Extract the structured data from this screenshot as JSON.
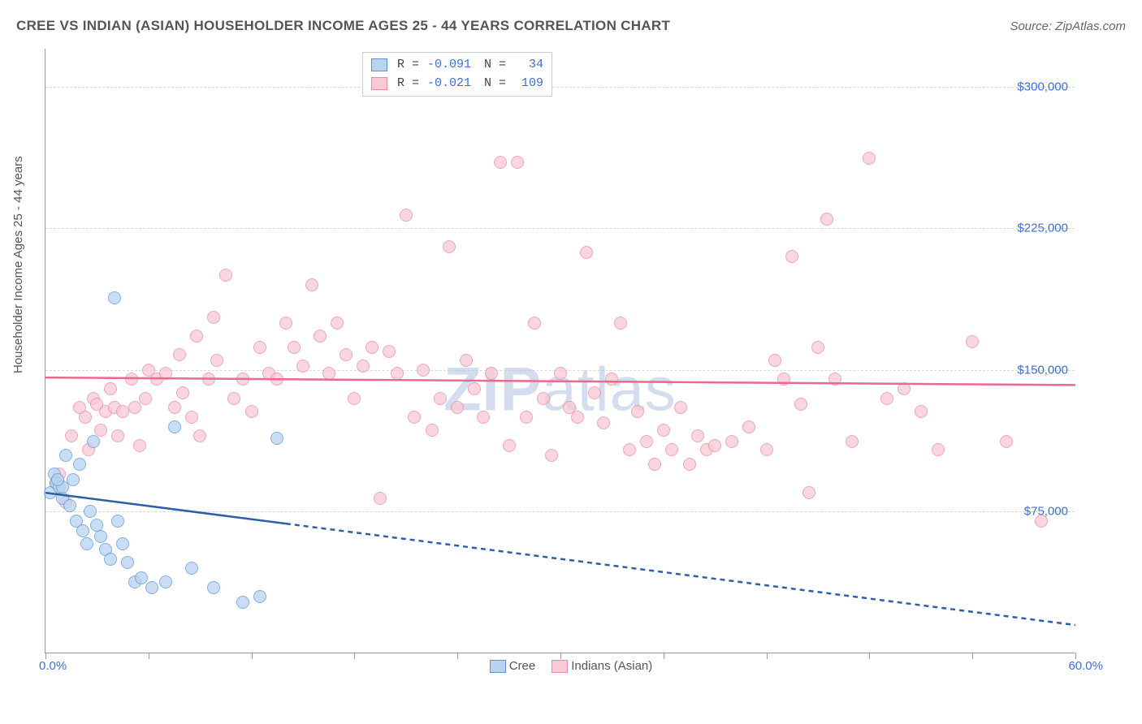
{
  "title": "CREE VS INDIAN (ASIAN) HOUSEHOLDER INCOME AGES 25 - 44 YEARS CORRELATION CHART",
  "source": "Source: ZipAtlas.com",
  "y_axis_label": "Householder Income Ages 25 - 44 years",
  "watermark_bold": "ZIP",
  "watermark_light": "atlas",
  "x_range": {
    "min_label": "0.0%",
    "max_label": "60.0%",
    "min": 0,
    "max": 60
  },
  "y_range": {
    "min": 0,
    "max": 320000
  },
  "y_ticks": [
    {
      "value": 75000,
      "label": "$75,000"
    },
    {
      "value": 150000,
      "label": "$150,000"
    },
    {
      "value": 225000,
      "label": "$225,000"
    },
    {
      "value": 300000,
      "label": "$300,000"
    }
  ],
  "x_tick_positions": [
    0,
    6,
    12,
    18,
    24,
    30,
    36,
    42,
    48,
    54,
    60
  ],
  "colors": {
    "cree_fill": "#b8d4f1",
    "cree_stroke": "#5a93d6",
    "cree_line": "#2d5fa8",
    "indian_fill": "#f9c9d4",
    "indian_stroke": "#e98aa5",
    "indian_line": "#e96a8b",
    "tick_label": "#3b6fd4",
    "grid": "#d8d8d8",
    "background": "#ffffff"
  },
  "marker_radius": 8,
  "legend_top": [
    {
      "swatch_fill": "#b8d4f1",
      "swatch_stroke": "#5a93d6",
      "r_label": "R =",
      "r_value": "-0.091",
      "n_label": "N =",
      "n_value": " 34"
    },
    {
      "swatch_fill": "#f9c9d4",
      "swatch_stroke": "#e98aa5",
      "r_label": "R =",
      "r_value": "-0.021",
      "n_label": "N =",
      "n_value": "109"
    }
  ],
  "legend_bottom": [
    {
      "swatch_fill": "#b8d4f1",
      "swatch_stroke": "#5a93d6",
      "label": "Cree"
    },
    {
      "swatch_fill": "#f9c9d4",
      "swatch_stroke": "#e98aa5",
      "label": "Indians (Asian)"
    }
  ],
  "series": {
    "cree": {
      "color_fill": "#b8d4f1",
      "color_stroke": "#5a93d6",
      "points": [
        [
          0.3,
          85000
        ],
        [
          0.5,
          95000
        ],
        [
          0.6,
          90000
        ],
        [
          0.8,
          88000
        ],
        [
          1.0,
          82000
        ],
        [
          1.2,
          105000
        ],
        [
          1.4,
          78000
        ],
        [
          1.6,
          92000
        ],
        [
          1.8,
          70000
        ],
        [
          2.0,
          100000
        ],
        [
          2.2,
          65000
        ],
        [
          2.4,
          58000
        ],
        [
          2.6,
          75000
        ],
        [
          2.8,
          112000
        ],
        [
          3.0,
          68000
        ],
        [
          3.2,
          62000
        ],
        [
          3.5,
          55000
        ],
        [
          3.8,
          50000
        ],
        [
          4.0,
          188000
        ],
        [
          4.2,
          70000
        ],
        [
          4.5,
          58000
        ],
        [
          4.8,
          48000
        ],
        [
          5.2,
          38000
        ],
        [
          5.6,
          40000
        ],
        [
          6.2,
          35000
        ],
        [
          7.0,
          38000
        ],
        [
          8.5,
          45000
        ],
        [
          9.8,
          35000
        ],
        [
          11.5,
          27000
        ],
        [
          12.5,
          30000
        ],
        [
          13.5,
          114000
        ],
        [
          7.5,
          120000
        ],
        [
          1.0,
          88000
        ],
        [
          0.7,
          92000
        ]
      ],
      "trend": {
        "y_at_xmin": 85000,
        "y_at_xmax": 15000,
        "solid_x_end": 14
      }
    },
    "indian": {
      "color_fill": "#f9c9d4",
      "color_stroke": "#e98aa5",
      "points": [
        [
          0.6,
          90000
        ],
        [
          0.8,
          95000
        ],
        [
          1.2,
          80000
        ],
        [
          1.5,
          115000
        ],
        [
          2.0,
          130000
        ],
        [
          2.3,
          125000
        ],
        [
          2.5,
          108000
        ],
        [
          2.8,
          135000
        ],
        [
          3.0,
          132000
        ],
        [
          3.2,
          118000
        ],
        [
          3.5,
          128000
        ],
        [
          3.8,
          140000
        ],
        [
          4.0,
          130000
        ],
        [
          4.2,
          115000
        ],
        [
          4.5,
          128000
        ],
        [
          5.0,
          145000
        ],
        [
          5.2,
          130000
        ],
        [
          5.5,
          110000
        ],
        [
          5.8,
          135000
        ],
        [
          6.0,
          150000
        ],
        [
          6.5,
          145000
        ],
        [
          7.0,
          148000
        ],
        [
          7.5,
          130000
        ],
        [
          8.0,
          138000
        ],
        [
          8.5,
          125000
        ],
        [
          9.0,
          115000
        ],
        [
          9.5,
          145000
        ],
        [
          10.0,
          155000
        ],
        [
          10.5,
          200000
        ],
        [
          11.0,
          135000
        ],
        [
          11.5,
          145000
        ],
        [
          12.0,
          128000
        ],
        [
          12.5,
          162000
        ],
        [
          13.0,
          148000
        ],
        [
          13.5,
          145000
        ],
        [
          14.0,
          175000
        ],
        [
          14.5,
          162000
        ],
        [
          15.0,
          152000
        ],
        [
          15.5,
          195000
        ],
        [
          16.0,
          168000
        ],
        [
          16.5,
          148000
        ],
        [
          17.0,
          175000
        ],
        [
          17.5,
          158000
        ],
        [
          18.0,
          135000
        ],
        [
          18.5,
          152000
        ],
        [
          19.0,
          162000
        ],
        [
          19.5,
          82000
        ],
        [
          20.0,
          160000
        ],
        [
          20.5,
          148000
        ],
        [
          21.0,
          232000
        ],
        [
          21.5,
          125000
        ],
        [
          22.0,
          150000
        ],
        [
          22.5,
          118000
        ],
        [
          23.0,
          135000
        ],
        [
          23.5,
          215000
        ],
        [
          24.0,
          130000
        ],
        [
          24.5,
          155000
        ],
        [
          25.0,
          140000
        ],
        [
          25.5,
          125000
        ],
        [
          26.0,
          148000
        ],
        [
          26.5,
          260000
        ],
        [
          27.0,
          110000
        ],
        [
          27.5,
          260000
        ],
        [
          28.0,
          125000
        ],
        [
          28.5,
          175000
        ],
        [
          29.0,
          135000
        ],
        [
          29.5,
          105000
        ],
        [
          30.0,
          148000
        ],
        [
          30.5,
          130000
        ],
        [
          31.0,
          125000
        ],
        [
          31.5,
          212000
        ],
        [
          32.0,
          138000
        ],
        [
          32.5,
          122000
        ],
        [
          33.0,
          145000
        ],
        [
          33.5,
          175000
        ],
        [
          34.0,
          108000
        ],
        [
          34.5,
          128000
        ],
        [
          35.0,
          112000
        ],
        [
          35.5,
          100000
        ],
        [
          36.0,
          118000
        ],
        [
          36.5,
          108000
        ],
        [
          37.0,
          130000
        ],
        [
          37.5,
          100000
        ],
        [
          38.0,
          115000
        ],
        [
          38.5,
          108000
        ],
        [
          39.0,
          110000
        ],
        [
          40.0,
          112000
        ],
        [
          41.0,
          120000
        ],
        [
          42.0,
          108000
        ],
        [
          42.5,
          155000
        ],
        [
          43.0,
          145000
        ],
        [
          43.5,
          210000
        ],
        [
          44.0,
          132000
        ],
        [
          44.5,
          85000
        ],
        [
          45.0,
          162000
        ],
        [
          45.5,
          230000
        ],
        [
          46.0,
          145000
        ],
        [
          47.0,
          112000
        ],
        [
          48.0,
          262000
        ],
        [
          49.0,
          135000
        ],
        [
          50.0,
          140000
        ],
        [
          51.0,
          128000
        ],
        [
          52.0,
          108000
        ],
        [
          54.0,
          165000
        ],
        [
          56.0,
          112000
        ],
        [
          58.0,
          70000
        ],
        [
          7.8,
          158000
        ],
        [
          8.8,
          168000
        ],
        [
          9.8,
          178000
        ]
      ],
      "trend": {
        "y_at_xmin": 146000,
        "y_at_xmax": 142000,
        "solid_x_end": 60
      }
    }
  }
}
